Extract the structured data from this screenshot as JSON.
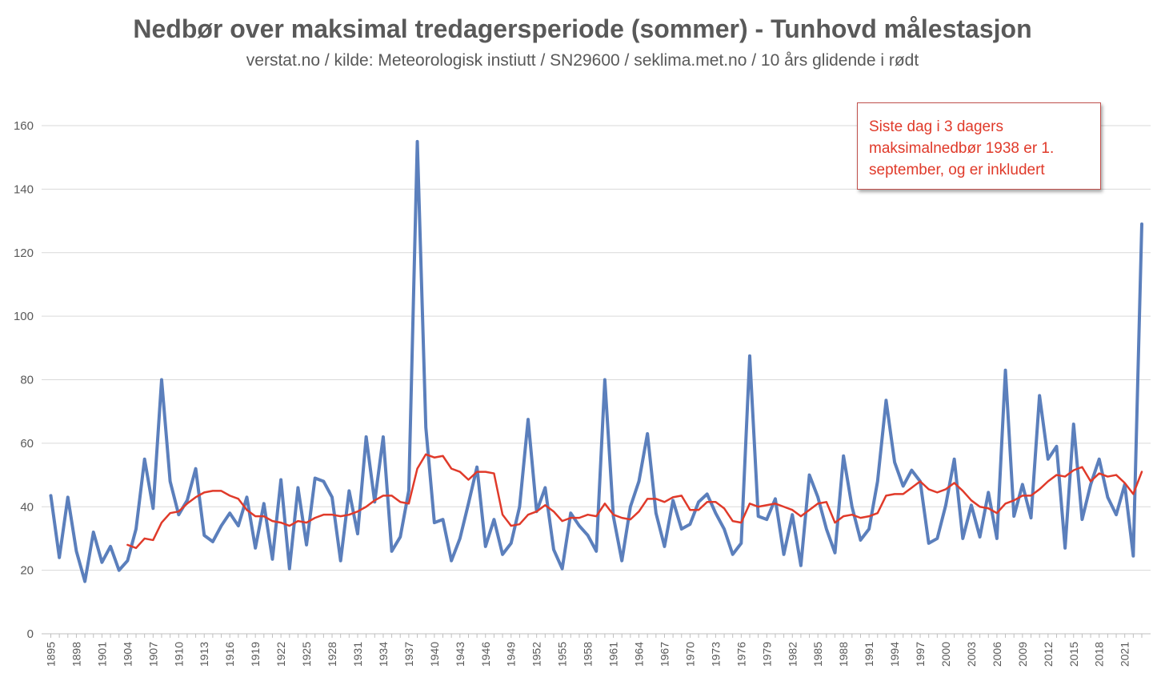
{
  "chart_data": {
    "type": "line",
    "title": "Nedbør over maksimal tredagersperiode (sommer) - Tunhovd målestasjon",
    "subtitle": "verstat.no / kilde: Meteorologisk instiutt / SN29600 / seklima.met.no / 10 års glidende i rødt",
    "xlabel": "",
    "ylabel": "",
    "ylim": [
      0,
      160
    ],
    "yticks": [
      0,
      20,
      40,
      60,
      80,
      100,
      120,
      140,
      160
    ],
    "x_start": 1895,
    "x_end": 2023,
    "xtick_step": 3,
    "grid": "horizontal",
    "annotation": "Siste dag i 3 dagers maksimalnedbør 1938 er 1. september, og er inkludert",
    "series": [
      {
        "color": "#5b7fbc",
        "values": [
          43.5,
          24,
          43,
          26,
          16.5,
          32,
          22.5,
          27.5,
          20,
          23,
          33,
          55,
          39.5,
          80,
          48,
          37.5,
          42,
          52,
          31,
          29,
          34,
          38,
          34,
          43,
          27,
          41,
          23.5,
          48.5,
          20.5,
          46,
          28,
          49,
          48,
          43,
          23,
          45,
          31.5,
          62,
          41.5,
          62,
          26,
          30.5,
          45,
          155,
          65,
          35,
          36,
          23,
          30,
          41,
          52.5,
          27.5,
          36,
          25,
          28.5,
          40,
          67.5,
          38.5,
          46,
          26.5,
          20.5,
          38,
          34,
          31,
          26,
          80,
          37,
          23,
          40,
          48,
          63,
          38,
          27.5,
          42,
          33,
          34.5,
          41.5,
          44,
          38,
          33,
          25,
          28.5,
          87.5,
          37,
          36,
          42.5,
          25,
          37.5,
          21.5,
          50,
          43,
          33,
          25.5,
          56,
          40,
          29.5,
          33,
          48,
          73.5,
          54,
          46.5,
          51.5,
          48,
          28.5,
          30,
          40.5,
          55,
          30,
          40.5,
          30.5,
          44.5,
          30,
          83,
          37,
          47,
          36.5,
          75,
          55,
          59,
          27,
          66,
          36,
          47,
          55,
          43,
          37.5,
          47,
          24.5,
          129
        ]
      },
      {
        "color": "#e03a2a",
        "values": [
          null,
          null,
          null,
          null,
          null,
          null,
          null,
          null,
          null,
          28,
          27,
          30,
          29.5,
          35,
          38,
          38.5,
          41,
          43,
          44.5,
          45,
          45,
          43.5,
          42.5,
          39,
          37,
          37,
          35.5,
          35,
          34,
          35.5,
          35,
          36.5,
          37.5,
          37.5,
          37,
          37.5,
          38.5,
          40,
          42,
          43.5,
          43.5,
          41.5,
          41,
          52,
          56.5,
          55.5,
          56,
          52,
          51,
          48.5,
          51,
          51,
          50.5,
          37.5,
          34,
          34.5,
          37.5,
          38.5,
          40.5,
          38.5,
          35.5,
          36.5,
          36.5,
          37.5,
          37,
          41,
          37.5,
          36.5,
          36,
          38.5,
          42.5,
          42.5,
          41.5,
          43,
          43.5,
          39,
          39,
          41.5,
          41.5,
          39.5,
          35.5,
          35,
          41,
          40,
          40.5,
          41,
          40,
          39,
          37,
          39,
          41,
          41.5,
          35,
          37,
          37.5,
          36.5,
          37,
          38,
          43.5,
          44,
          44,
          46,
          48,
          45.5,
          44.5,
          45.5,
          47.5,
          45,
          42,
          40,
          39.5,
          38,
          41,
          42,
          43.5,
          43.5,
          45.5,
          48,
          50,
          49.5,
          51.5,
          52.5,
          48,
          50.5,
          49.5,
          50,
          47.5,
          44,
          51
        ]
      }
    ]
  }
}
